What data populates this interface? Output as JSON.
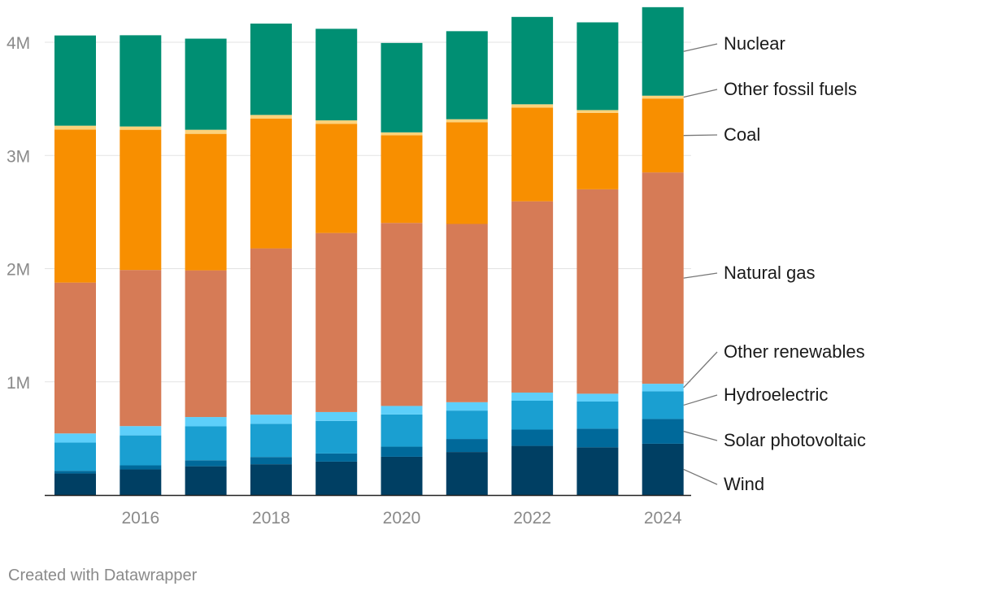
{
  "chart_data": {
    "type": "bar",
    "stacked": true,
    "categories": [
      "2015",
      "2016",
      "2017",
      "2018",
      "2019",
      "2020",
      "2021",
      "2022",
      "2023",
      "2024"
    ],
    "x_tick_labels": [
      "2016",
      "2018",
      "2020",
      "2022",
      "2024"
    ],
    "ylim": [
      0,
      4300000
    ],
    "y_ticks": [
      {
        "value": 1000000,
        "label": "1M"
      },
      {
        "value": 2000000,
        "label": "2M"
      },
      {
        "value": 3000000,
        "label": "3M"
      },
      {
        "value": 4000000,
        "label": "4M"
      }
    ],
    "series": [
      {
        "name": "Wind",
        "color": "#003f63",
        "values": [
          190000,
          226000,
          254000,
          272000,
          295000,
          338000,
          380000,
          434000,
          421000,
          453000
        ]
      },
      {
        "name": "Solar photovoltaic",
        "color": "#00699a",
        "values": [
          24000,
          36000,
          53000,
          64000,
          72000,
          89000,
          115000,
          144000,
          165000,
          219000
        ]
      },
      {
        "name": "Hydroelectric",
        "color": "#1a9fd1",
        "values": [
          249000,
          265000,
          300000,
          293000,
          288000,
          285000,
          251000,
          255000,
          240000,
          244000
        ]
      },
      {
        "name": "Other renewables",
        "color": "#5dcffa",
        "values": [
          81000,
          82000,
          82000,
          81000,
          78000,
          75000,
          74000,
          72000,
          69000,
          67000
        ]
      },
      {
        "name": "Natural gas",
        "color": "#d67b56",
        "values": [
          1333000,
          1379000,
          1296000,
          1469000,
          1582000,
          1617000,
          1575000,
          1690000,
          1806000,
          1867000
        ]
      },
      {
        "name": "Coal",
        "color": "#f88f00",
        "values": [
          1352000,
          1239000,
          1206000,
          1146000,
          965000,
          774000,
          898000,
          828000,
          675000,
          653000
        ]
      },
      {
        "name": "Other fossil fuels",
        "color": "#fcd27a",
        "values": [
          34000,
          29000,
          36000,
          33000,
          30000,
          26000,
          27000,
          29000,
          25000,
          25000
        ]
      },
      {
        "name": "Nuclear",
        "color": "#008f73",
        "values": [
          797000,
          806000,
          805000,
          807000,
          809000,
          790000,
          778000,
          772000,
          775000,
          782000
        ]
      }
    ],
    "legend_placement": "right, labels aligned to the last bar"
  },
  "footer": {
    "credit": "Created with Datawrapper"
  }
}
